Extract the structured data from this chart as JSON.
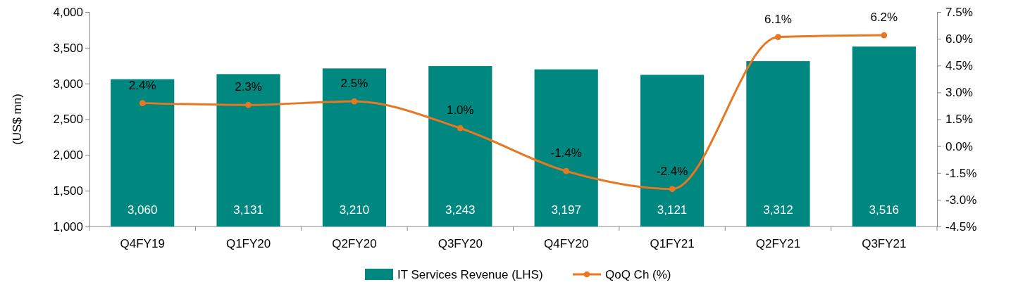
{
  "chart_data": {
    "type": "bar",
    "ylabel": "(US$ mn)",
    "categories": [
      "Q4FY19",
      "Q1FY20",
      "Q2FY20",
      "Q3FY20",
      "Q4FY20",
      "Q1FY21",
      "Q2FY21",
      "Q3FY21"
    ],
    "series": [
      {
        "name": "IT Services Revenue (LHS)",
        "color": "#00877f",
        "values": [
          3060,
          3131,
          3210,
          3243,
          3197,
          3121,
          3312,
          3516
        ],
        "value_labels": [
          "3,060",
          "3,131",
          "3,210",
          "3,243",
          "3,197",
          "3,121",
          "3,312",
          "3,516"
        ]
      },
      {
        "name": "QoQ Ch (%)",
        "type": "line",
        "axis": "y2",
        "color": "#e87722",
        "marker": "circle",
        "line_style": "solid",
        "values": [
          2.4,
          2.3,
          2.5,
          1.0,
          -1.4,
          -2.4,
          6.1,
          6.2
        ],
        "value_labels": [
          "2.4%",
          "2.3%",
          "2.5%",
          "1.0%",
          "-1.4%",
          "-2.4%",
          "6.1%",
          "6.2%"
        ]
      }
    ],
    "ylim": [
      1000,
      4000
    ],
    "yticks": [
      {
        "value": 1000,
        "label": "1,000"
      },
      {
        "value": 1500,
        "label": "1,500"
      },
      {
        "value": 2000,
        "label": "2,000"
      },
      {
        "value": 2500,
        "label": "2,500"
      },
      {
        "value": 3000,
        "label": "3,000"
      },
      {
        "value": 3500,
        "label": "3,500"
      },
      {
        "value": 4000,
        "label": "4,000"
      }
    ],
    "y2lim": [
      -4.5,
      7.5
    ],
    "y2ticks": [
      {
        "value": -4.5,
        "label": "-4.5%"
      },
      {
        "value": -3,
        "label": "-3.0%"
      },
      {
        "value": -1.5,
        "label": "-1.5%"
      },
      {
        "value": 0,
        "label": "0.0%"
      },
      {
        "value": 1.5,
        "label": "1.5%"
      },
      {
        "value": 3,
        "label": "3.0%"
      },
      {
        "value": 4.5,
        "label": "4.5%"
      },
      {
        "value": 6,
        "label": "6.0%"
      },
      {
        "value": 7.5,
        "label": "7.5%"
      }
    ],
    "legend": "bottom"
  }
}
